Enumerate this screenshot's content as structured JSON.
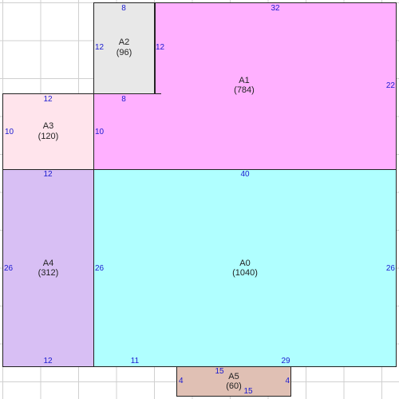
{
  "regions": [
    {
      "name": "A0",
      "area": "(1040)",
      "color": "#b0ffff"
    },
    {
      "name": "A1",
      "area": "(784)",
      "color": "#ffb0ff"
    },
    {
      "name": "A2",
      "area": "(96)",
      "color": "#e8e8e8"
    },
    {
      "name": "A3",
      "area": "(120)",
      "color": "#ffe4ec"
    },
    {
      "name": "A4",
      "area": "(312)",
      "color": "#d8bff4"
    },
    {
      "name": "A5",
      "area": "(60)",
      "color": "#e0c0b4"
    }
  ],
  "dims": {
    "a2_top": "8",
    "a2_left": "12",
    "a2_right": "12",
    "a1_top": "32",
    "a1_right": "22",
    "a1_bottom_inner": "8",
    "a1_left_inner": "10",
    "a3_top": "12",
    "a3_left": "10",
    "a4_top": "12",
    "a4_left": "26",
    "a4_bottom": "12",
    "a0_top": "40",
    "a0_left": "26",
    "a0_right": "26",
    "a0_bottom_left": "11",
    "a0_bottom_right": "29",
    "a5_top": "15",
    "a5_left": "4",
    "a5_right": "4",
    "a5_bottom": "15"
  }
}
